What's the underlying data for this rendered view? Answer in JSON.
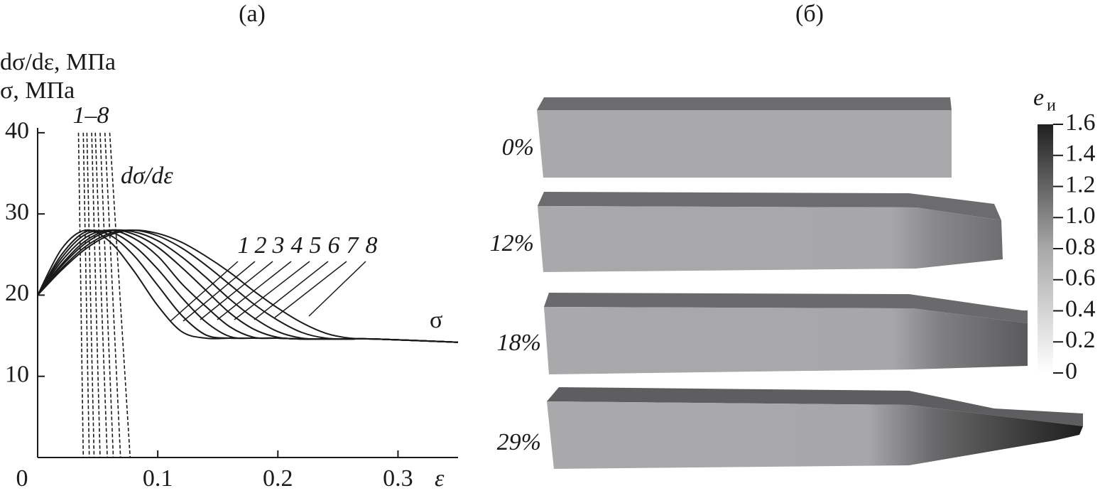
{
  "chart_data": {
    "type": "line",
    "title": "(a)",
    "ylabel": [
      "dσ/dε, МПа",
      "σ, МПа"
    ],
    "xlabel": "ε",
    "xlim": [
      0,
      0.35
    ],
    "ylim": [
      0,
      40.6
    ],
    "xticks": [
      0,
      0.1,
      0.2,
      0.3
    ],
    "yticks": [
      10,
      20,
      30,
      40
    ],
    "color": "#1a1a1a",
    "series_label": "σ",
    "x": [
      0,
      0.02,
      0.04,
      0.06,
      0.08,
      0.1,
      0.12,
      0.14,
      0.16,
      0.18,
      0.2,
      0.22,
      0.24,
      0.26,
      0.28,
      0.35
    ],
    "series": [
      {
        "name": "1",
        "values": [
          20,
          25.7,
          28,
          26.6,
          23.0,
          18.7,
          15.5,
          14.7,
          14.7,
          14.7,
          14.7,
          14.6,
          14.6,
          14.6,
          14.6,
          14.2
        ]
      },
      {
        "name": "2",
        "values": [
          20,
          25.0,
          27.8,
          27.4,
          24.9,
          21.2,
          17.5,
          15.1,
          14.7,
          14.7,
          14.7,
          14.6,
          14.6,
          14.6,
          14.6,
          14.2
        ]
      },
      {
        "name": "3",
        "values": [
          20,
          24.6,
          27.5,
          27.8,
          26.1,
          23.2,
          19.7,
          16.7,
          14.9,
          14.7,
          14.7,
          14.6,
          14.6,
          14.6,
          14.6,
          14.2
        ]
      },
      {
        "name": "4",
        "values": [
          20,
          24.2,
          27.1,
          28.0,
          27.0,
          24.8,
          21.4,
          18.6,
          16.1,
          14.8,
          14.7,
          14.6,
          14.6,
          14.6,
          14.6,
          14.2
        ]
      },
      {
        "name": "5",
        "values": [
          20,
          23.8,
          26.7,
          28.0,
          27.5,
          25.9,
          23.4,
          20.6,
          17.8,
          15.8,
          14.8,
          14.6,
          14.6,
          14.6,
          14.6,
          14.2
        ]
      },
      {
        "name": "6",
        "values": [
          20,
          23.6,
          26.4,
          27.9,
          27.8,
          26.7,
          24.7,
          22.2,
          19.5,
          17.2,
          15.5,
          14.7,
          14.6,
          14.6,
          14.6,
          14.2
        ]
      },
      {
        "name": "7",
        "values": [
          20,
          23.3,
          26.0,
          27.6,
          28.0,
          27.3,
          25.8,
          23.7,
          21.3,
          18.9,
          16.9,
          15.4,
          14.7,
          14.6,
          14.6,
          14.2
        ]
      },
      {
        "name": "8",
        "values": [
          20,
          23.1,
          25.7,
          27.4,
          28.0,
          27.6,
          26.5,
          24.8,
          22.8,
          20.5,
          18.4,
          16.6,
          15.3,
          14.7,
          14.6,
          14.2
        ]
      }
    ],
    "derivative": {
      "label": "dσ/dε",
      "group_label": "1–8",
      "dashed": true,
      "series": [
        {
          "x": [
            0.034,
            0.038
          ],
          "values": [
            40,
            0
          ]
        },
        {
          "x": [
            0.038,
            0.043
          ],
          "values": [
            40,
            0
          ]
        },
        {
          "x": [
            0.041,
            0.047
          ],
          "values": [
            40,
            0
          ]
        },
        {
          "x": [
            0.045,
            0.052
          ],
          "values": [
            40,
            0
          ]
        },
        {
          "x": [
            0.048,
            0.058
          ],
          "values": [
            40,
            0
          ]
        },
        {
          "x": [
            0.052,
            0.063
          ],
          "values": [
            40,
            0
          ]
        },
        {
          "x": [
            0.056,
            0.069
          ],
          "values": [
            40,
            0
          ]
        },
        {
          "x": [
            0.06,
            0.077
          ],
          "values": [
            40,
            0
          ]
        }
      ]
    }
  },
  "panel_b": {
    "title": "(б)",
    "labels": [
      "0%",
      "12%",
      "18%",
      "29%"
    ],
    "colorbar": {
      "symbol": "e",
      "subscript": "и",
      "lim": [
        0,
        1.6
      ],
      "ticks": [
        0,
        0.2,
        0.4,
        0.6,
        0.8,
        {
          "value": 1,
          "label": "1.0"
        },
        1.2,
        1.4,
        1.6
      ]
    }
  }
}
